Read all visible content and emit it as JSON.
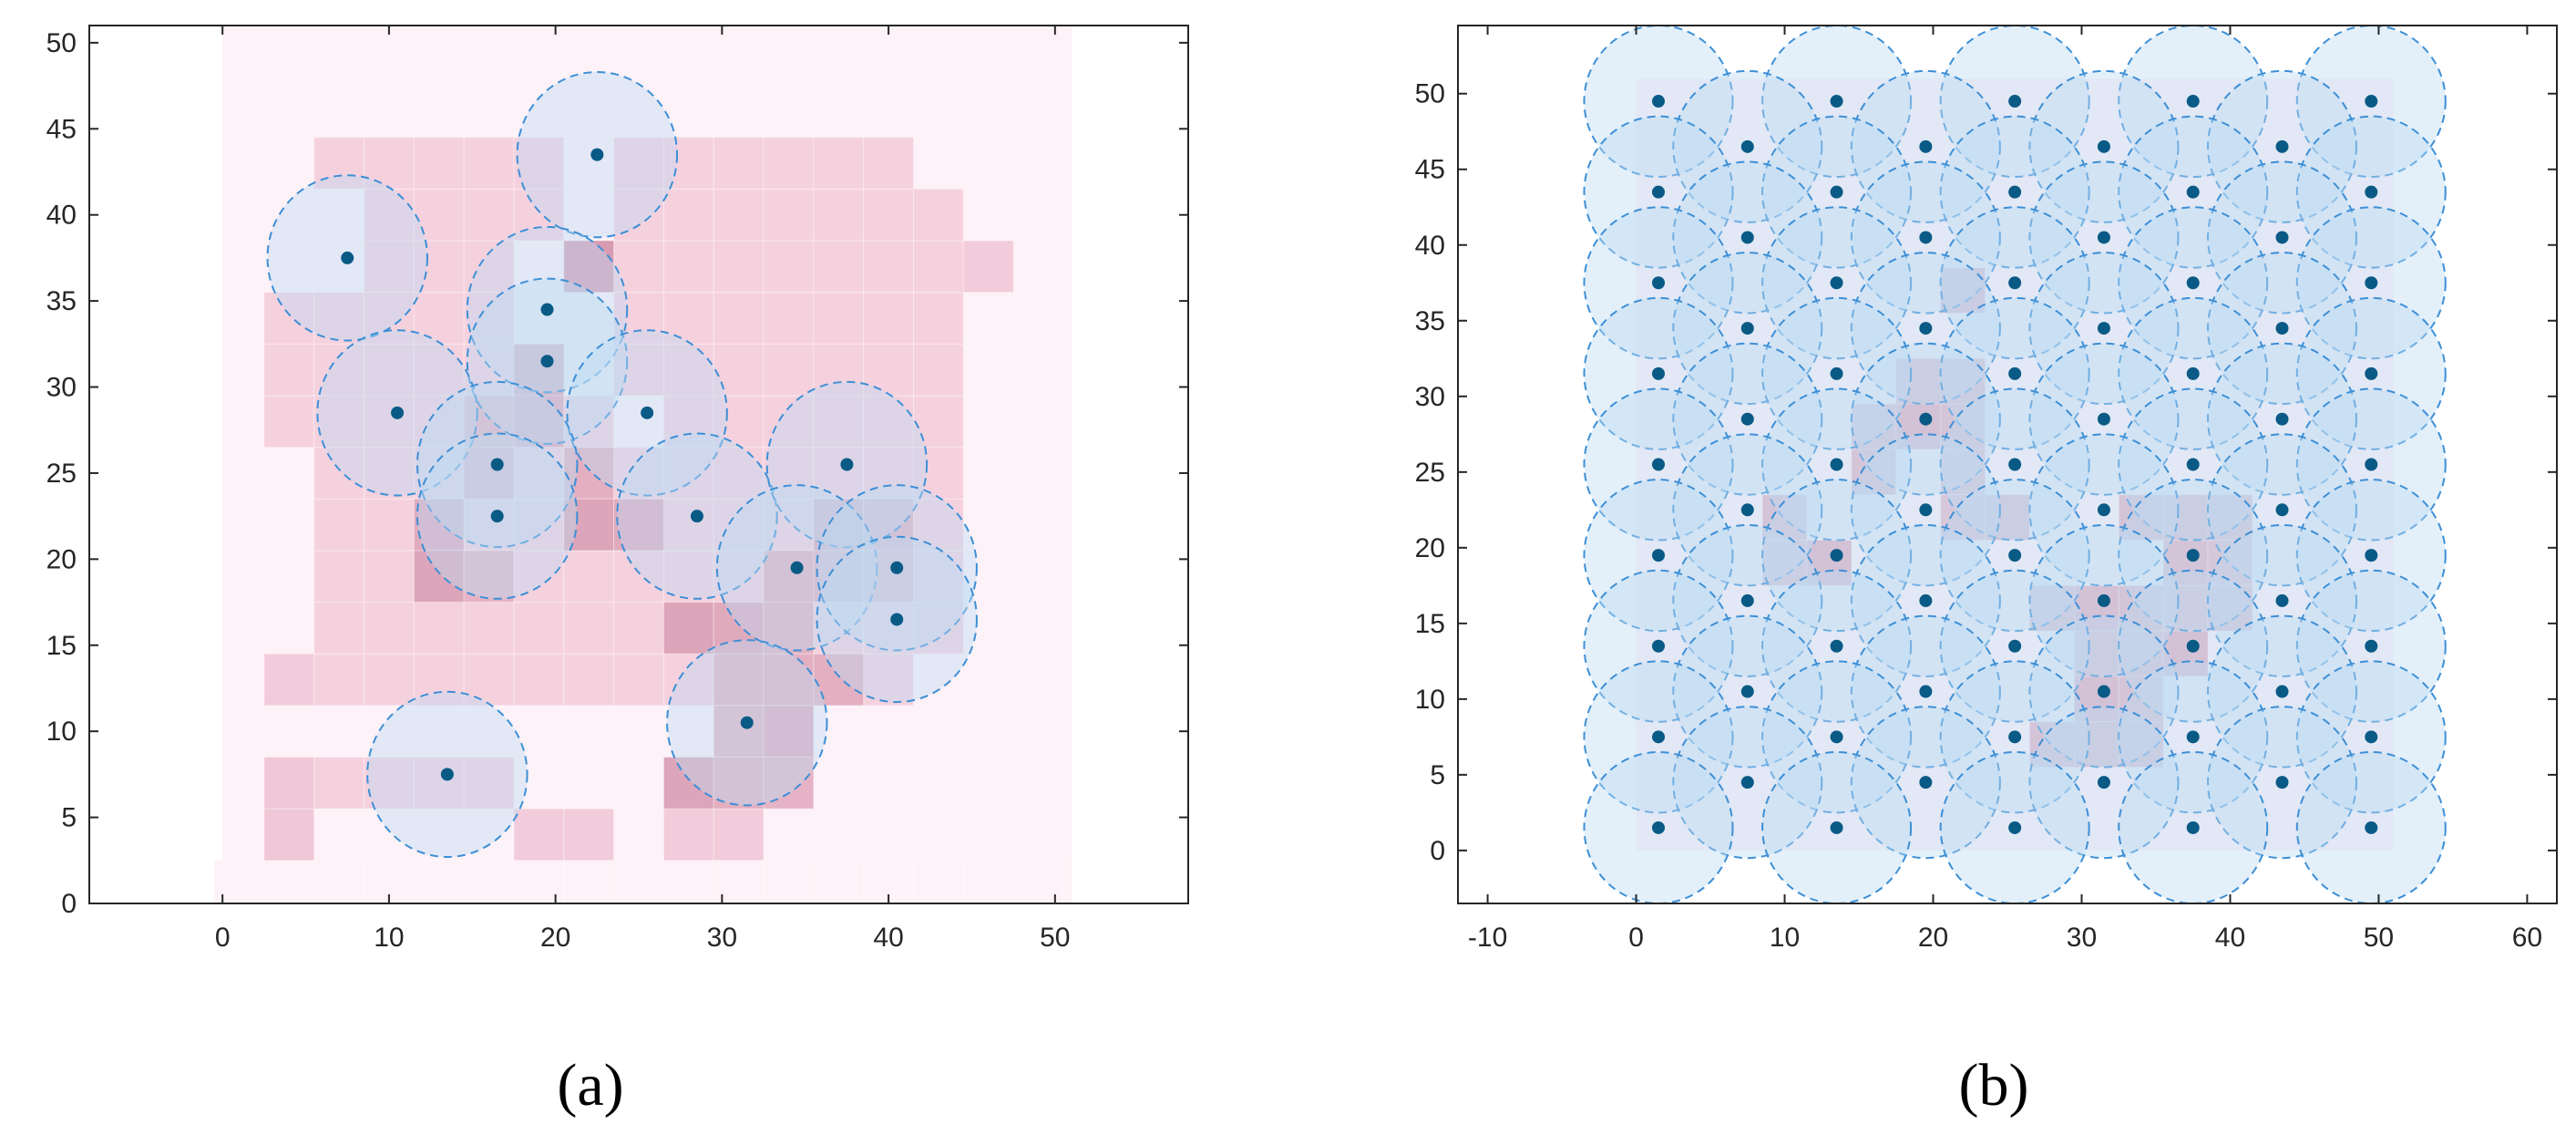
{
  "chart_data": [
    {
      "type": "scatter",
      "panel_label": "(a)",
      "title": "",
      "xlabel": "",
      "ylabel": "",
      "xlim": [
        -8,
        58
      ],
      "ylim": [
        0,
        51
      ],
      "xticks": [
        0,
        10,
        20,
        30,
        40,
        50
      ],
      "yticks": [
        0,
        5,
        10,
        15,
        20,
        25,
        30,
        35,
        40,
        45,
        50
      ],
      "grid": false,
      "cell_size": 3,
      "background_region": [
        0,
        0,
        51,
        51
      ],
      "heatmap_cells": [
        [
          1,
          1,
          0.05
        ],
        [
          4,
          1,
          0.05
        ],
        [
          7,
          1,
          0.05
        ],
        [
          10,
          1,
          0.05
        ],
        [
          13,
          1,
          0.05
        ],
        [
          16,
          1,
          0.05
        ],
        [
          19,
          1,
          0.05
        ],
        [
          22,
          1,
          0.05
        ],
        [
          25,
          1,
          0.05
        ],
        [
          28,
          1,
          0.05
        ],
        [
          31,
          1,
          0.05
        ],
        [
          34,
          1,
          0.05
        ],
        [
          37,
          1,
          0.05
        ],
        [
          40,
          1,
          0.05
        ],
        [
          43,
          1,
          0.05
        ],
        [
          46,
          1,
          0.05
        ],
        [
          49,
          1,
          0.05
        ],
        [
          4,
          4,
          0.25
        ],
        [
          4,
          7,
          0.25
        ],
        [
          7,
          7,
          0.15
        ],
        [
          10,
          7,
          0.15
        ],
        [
          13,
          7,
          0.15
        ],
        [
          16,
          7,
          0.15
        ],
        [
          19,
          4,
          0.2
        ],
        [
          22,
          4,
          0.2
        ],
        [
          28,
          4,
          0.2
        ],
        [
          31,
          4,
          0.2
        ],
        [
          4,
          13,
          0.2
        ],
        [
          7,
          13,
          0.15
        ],
        [
          10,
          13,
          0.15
        ],
        [
          13,
          13,
          0.15
        ],
        [
          16,
          13,
          0.15
        ],
        [
          19,
          13,
          0.15
        ],
        [
          22,
          13,
          0.15
        ],
        [
          25,
          13,
          0.15
        ],
        [
          28,
          13,
          0.15
        ],
        [
          37,
          13,
          0.15
        ],
        [
          40,
          13,
          0.15
        ],
        [
          7,
          16,
          0.15
        ],
        [
          10,
          16,
          0.15
        ],
        [
          13,
          16,
          0.15
        ],
        [
          16,
          16,
          0.15
        ],
        [
          19,
          16,
          0.15
        ],
        [
          22,
          16,
          0.15
        ],
        [
          25,
          16,
          0.15
        ],
        [
          37,
          16,
          0.15
        ],
        [
          40,
          16,
          0.15
        ],
        [
          43,
          16,
          0.15
        ],
        [
          7,
          19,
          0.15
        ],
        [
          10,
          19,
          0.15
        ],
        [
          16,
          19,
          0.15
        ],
        [
          19,
          19,
          0.15
        ],
        [
          22,
          19,
          0.15
        ],
        [
          25,
          19,
          0.15
        ],
        [
          28,
          19,
          0.15
        ],
        [
          31,
          19,
          0.15
        ],
        [
          43,
          19,
          0.15
        ],
        [
          7,
          22,
          0.15
        ],
        [
          10,
          22,
          0.15
        ],
        [
          16,
          22,
          0.15
        ],
        [
          19,
          22,
          0.15
        ],
        [
          22,
          22,
          0.15
        ],
        [
          25,
          22,
          0.15
        ],
        [
          28,
          22,
          0.15
        ],
        [
          31,
          22,
          0.15
        ],
        [
          34,
          22,
          0.15
        ],
        [
          43,
          22,
          0.15
        ],
        [
          7,
          25,
          0.15
        ],
        [
          10,
          25,
          0.15
        ],
        [
          13,
          25,
          0.15
        ],
        [
          19,
          25,
          0.15
        ],
        [
          22,
          25,
          0.15
        ],
        [
          25,
          25,
          0.15
        ],
        [
          28,
          25,
          0.15
        ],
        [
          31,
          25,
          0.15
        ],
        [
          34,
          25,
          0.15
        ],
        [
          37,
          25,
          0.15
        ],
        [
          40,
          25,
          0.15
        ],
        [
          43,
          25,
          0.15
        ],
        [
          4,
          28,
          0.15
        ],
        [
          7,
          28,
          0.15
        ],
        [
          10,
          28,
          0.15
        ],
        [
          13,
          28,
          0.15
        ],
        [
          22,
          28,
          0.15
        ],
        [
          28,
          28,
          0.15
        ],
        [
          31,
          28,
          0.15
        ],
        [
          34,
          28,
          0.15
        ],
        [
          37,
          28,
          0.15
        ],
        [
          40,
          28,
          0.15
        ],
        [
          43,
          28,
          0.15
        ],
        [
          4,
          31,
          0.15
        ],
        [
          7,
          31,
          0.15
        ],
        [
          10,
          31,
          0.15
        ],
        [
          13,
          31,
          0.15
        ],
        [
          16,
          31,
          0.15
        ],
        [
          25,
          31,
          0.15
        ],
        [
          28,
          31,
          0.15
        ],
        [
          31,
          31,
          0.15
        ],
        [
          34,
          31,
          0.15
        ],
        [
          37,
          31,
          0.15
        ],
        [
          40,
          31,
          0.15
        ],
        [
          43,
          31,
          0.15
        ],
        [
          4,
          34,
          0.15
        ],
        [
          7,
          34,
          0.15
        ],
        [
          10,
          34,
          0.15
        ],
        [
          13,
          34,
          0.15
        ],
        [
          16,
          34,
          0.15
        ],
        [
          25,
          34,
          0.15
        ],
        [
          28,
          34,
          0.15
        ],
        [
          31,
          34,
          0.15
        ],
        [
          34,
          34,
          0.15
        ],
        [
          37,
          34,
          0.15
        ],
        [
          40,
          34,
          0.15
        ],
        [
          43,
          34,
          0.15
        ],
        [
          10,
          37,
          0.15
        ],
        [
          13,
          37,
          0.15
        ],
        [
          16,
          37,
          0.15
        ],
        [
          25,
          37,
          0.15
        ],
        [
          28,
          37,
          0.15
        ],
        [
          31,
          37,
          0.15
        ],
        [
          34,
          37,
          0.15
        ],
        [
          37,
          37,
          0.15
        ],
        [
          40,
          37,
          0.15
        ],
        [
          43,
          37,
          0.15
        ],
        [
          46,
          37,
          0.2
        ],
        [
          10,
          40,
          0.15
        ],
        [
          13,
          40,
          0.15
        ],
        [
          16,
          40,
          0.15
        ],
        [
          19,
          40,
          0.15
        ],
        [
          25,
          40,
          0.15
        ],
        [
          28,
          40,
          0.15
        ],
        [
          31,
          40,
          0.15
        ],
        [
          34,
          40,
          0.15
        ],
        [
          37,
          40,
          0.15
        ],
        [
          40,
          40,
          0.15
        ],
        [
          43,
          40,
          0.15
        ],
        [
          7,
          43,
          0.15
        ],
        [
          10,
          43,
          0.15
        ],
        [
          13,
          43,
          0.15
        ],
        [
          16,
          43,
          0.15
        ],
        [
          19,
          43,
          0.15
        ],
        [
          25,
          43,
          0.15
        ],
        [
          28,
          43,
          0.15
        ],
        [
          31,
          43,
          0.15
        ],
        [
          34,
          43,
          0.15
        ],
        [
          37,
          43,
          0.15
        ],
        [
          40,
          43,
          0.15
        ],
        [
          22,
          37,
          0.7
        ],
        [
          19,
          31,
          0.6
        ],
        [
          19,
          28,
          0.55
        ],
        [
          16,
          28,
          0.45
        ],
        [
          16,
          25,
          0.5
        ],
        [
          22,
          25,
          0.5
        ],
        [
          22,
          22,
          0.6
        ],
        [
          25,
          22,
          0.55
        ],
        [
          13,
          22,
          0.55
        ],
        [
          13,
          19,
          0.6
        ],
        [
          16,
          19,
          0.45
        ],
        [
          28,
          16,
          0.6
        ],
        [
          31,
          16,
          0.55
        ],
        [
          34,
          16,
          0.5
        ],
        [
          34,
          19,
          0.5
        ],
        [
          37,
          19,
          0.5
        ],
        [
          37,
          22,
          0.55
        ],
        [
          40,
          22,
          0.5
        ],
        [
          40,
          19,
          0.45
        ],
        [
          31,
          13,
          0.5
        ],
        [
          34,
          13,
          0.5
        ],
        [
          37,
          13,
          0.5
        ],
        [
          31,
          10,
          0.45
        ],
        [
          34,
          10,
          0.55
        ],
        [
          28,
          7,
          0.6
        ],
        [
          31,
          7,
          0.5
        ],
        [
          34,
          7,
          0.45
        ]
      ],
      "sensors": [
        [
          7.5,
          37.5
        ],
        [
          22.5,
          43.5
        ],
        [
          19.5,
          34.5
        ],
        [
          19.5,
          31.5
        ],
        [
          10.5,
          28.5
        ],
        [
          25.5,
          28.5
        ],
        [
          16.5,
          25.5
        ],
        [
          16.5,
          22.5
        ],
        [
          28.5,
          22.5
        ],
        [
          37.5,
          25.5
        ],
        [
          34.5,
          19.5
        ],
        [
          40.5,
          19.5
        ],
        [
          40.5,
          16.5
        ],
        [
          31.5,
          10.5
        ],
        [
          13.5,
          7.5
        ]
      ],
      "sensor_radius": 4.8
    },
    {
      "type": "scatter",
      "panel_label": "(b)",
      "title": "",
      "xlabel": "",
      "ylabel": "",
      "xlim": [
        -12,
        62
      ],
      "ylim": [
        -3.5,
        54.5
      ],
      "xticks": [
        -10,
        0,
        10,
        20,
        30,
        40,
        50,
        60
      ],
      "yticks": [
        0,
        5,
        10,
        15,
        20,
        25,
        30,
        35,
        40,
        45,
        50
      ],
      "grid": false,
      "cell_size": 3,
      "background_region": [
        0,
        0,
        51,
        51
      ],
      "heatmap_cells": [
        [
          22,
          37,
          0.5
        ],
        [
          19,
          31,
          0.45
        ],
        [
          22,
          31,
          0.45
        ],
        [
          22,
          28,
          0.45
        ],
        [
          16,
          28,
          0.45
        ],
        [
          19,
          28,
          0.5
        ],
        [
          16,
          25,
          0.45
        ],
        [
          22,
          25,
          0.4
        ],
        [
          25,
          22,
          0.45
        ],
        [
          22,
          22,
          0.4
        ],
        [
          10,
          22,
          0.45
        ],
        [
          10,
          19,
          0.4
        ],
        [
          13,
          19,
          0.5
        ],
        [
          34,
          22,
          0.45
        ],
        [
          37,
          22,
          0.45
        ],
        [
          40,
          22,
          0.45
        ],
        [
          37,
          19,
          0.45
        ],
        [
          40,
          19,
          0.4
        ],
        [
          28,
          16,
          0.45
        ],
        [
          31,
          16,
          0.5
        ],
        [
          34,
          16,
          0.45
        ],
        [
          37,
          16,
          0.4
        ],
        [
          40,
          16,
          0.45
        ],
        [
          31,
          13,
          0.45
        ],
        [
          34,
          13,
          0.45
        ],
        [
          37,
          13,
          0.5
        ],
        [
          31,
          10,
          0.5
        ],
        [
          34,
          10,
          0.45
        ],
        [
          28,
          7,
          0.45
        ],
        [
          31,
          7,
          0.45
        ],
        [
          34,
          7,
          0.45
        ]
      ],
      "sensors": [
        [
          1.5,
          49.5
        ],
        [
          13.5,
          49.5
        ],
        [
          25.5,
          49.5
        ],
        [
          37.5,
          49.5
        ],
        [
          49.5,
          49.5
        ],
        [
          7.5,
          46.5
        ],
        [
          19.5,
          46.5
        ],
        [
          31.5,
          46.5
        ],
        [
          43.5,
          46.5
        ],
        [
          1.5,
          43.5
        ],
        [
          13.5,
          43.5
        ],
        [
          25.5,
          43.5
        ],
        [
          37.5,
          43.5
        ],
        [
          49.5,
          43.5
        ],
        [
          7.5,
          40.5
        ],
        [
          19.5,
          40.5
        ],
        [
          31.5,
          40.5
        ],
        [
          43.5,
          40.5
        ],
        [
          1.5,
          37.5
        ],
        [
          13.5,
          37.5
        ],
        [
          25.5,
          37.5
        ],
        [
          37.5,
          37.5
        ],
        [
          49.5,
          37.5
        ],
        [
          7.5,
          34.5
        ],
        [
          19.5,
          34.5
        ],
        [
          31.5,
          34.5
        ],
        [
          43.5,
          34.5
        ],
        [
          1.5,
          31.5
        ],
        [
          13.5,
          31.5
        ],
        [
          25.5,
          31.5
        ],
        [
          37.5,
          31.5
        ],
        [
          49.5,
          31.5
        ],
        [
          7.5,
          28.5
        ],
        [
          19.5,
          28.5
        ],
        [
          31.5,
          28.5
        ],
        [
          43.5,
          28.5
        ],
        [
          1.5,
          25.5
        ],
        [
          13.5,
          25.5
        ],
        [
          25.5,
          25.5
        ],
        [
          37.5,
          25.5
        ],
        [
          49.5,
          25.5
        ],
        [
          7.5,
          22.5
        ],
        [
          19.5,
          22.5
        ],
        [
          31.5,
          22.5
        ],
        [
          43.5,
          22.5
        ],
        [
          1.5,
          19.5
        ],
        [
          13.5,
          19.5
        ],
        [
          25.5,
          19.5
        ],
        [
          37.5,
          19.5
        ],
        [
          49.5,
          19.5
        ],
        [
          7.5,
          16.5
        ],
        [
          19.5,
          16.5
        ],
        [
          31.5,
          16.5
        ],
        [
          43.5,
          16.5
        ],
        [
          1.5,
          13.5
        ],
        [
          13.5,
          13.5
        ],
        [
          25.5,
          13.5
        ],
        [
          37.5,
          13.5
        ],
        [
          49.5,
          13.5
        ],
        [
          7.5,
          10.5
        ],
        [
          19.5,
          10.5
        ],
        [
          31.5,
          10.5
        ],
        [
          43.5,
          10.5
        ],
        [
          1.5,
          7.5
        ],
        [
          13.5,
          7.5
        ],
        [
          25.5,
          7.5
        ],
        [
          37.5,
          7.5
        ],
        [
          49.5,
          7.5
        ],
        [
          7.5,
          4.5
        ],
        [
          19.5,
          4.5
        ],
        [
          31.5,
          4.5
        ],
        [
          43.5,
          4.5
        ],
        [
          1.5,
          1.5
        ],
        [
          13.5,
          1.5
        ],
        [
          25.5,
          1.5
        ],
        [
          37.5,
          1.5
        ],
        [
          49.5,
          1.5
        ]
      ],
      "sensor_radius": 5
    }
  ],
  "colors": {
    "axis": "#262626",
    "background_cell": "#fdf2f7",
    "heat_light": "#fde0ea",
    "heat_dark": "#c87d98",
    "sensor_fill": "#bcdcf2",
    "sensor_stroke": "#3d8fd6",
    "sensor_dot": "#0a5a86"
  }
}
